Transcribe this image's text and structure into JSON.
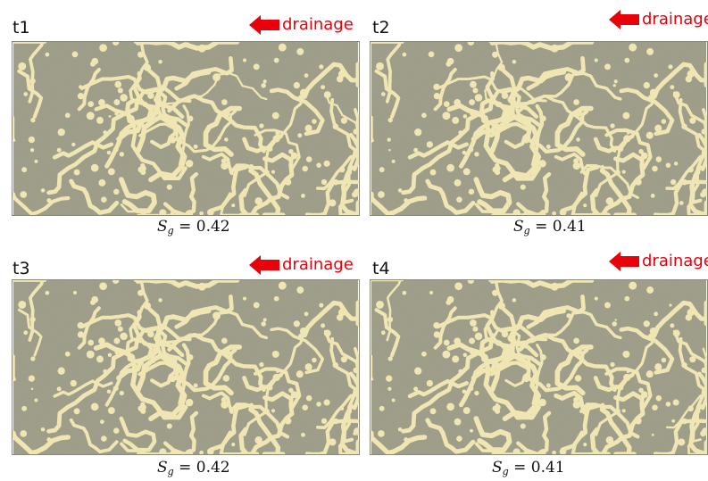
{
  "panels": [
    {
      "label": "t1",
      "flow_label": "drainage",
      "saturation_symbol": "S",
      "saturation_subscript": "g",
      "saturation_equals": "=",
      "saturation_value": "0.42"
    },
    {
      "label": "t2",
      "flow_label": "drainage",
      "saturation_symbol": "S",
      "saturation_subscript": "g",
      "saturation_equals": "=",
      "saturation_value": "0.41"
    },
    {
      "label": "t3",
      "flow_label": "drainage",
      "saturation_symbol": "S",
      "saturation_subscript": "g",
      "saturation_equals": "=",
      "saturation_value": "0.42"
    },
    {
      "label": "t4",
      "flow_label": "drainage",
      "saturation_symbol": "S",
      "saturation_subscript": "g",
      "saturation_equals": "=",
      "saturation_value": "0.41"
    }
  ],
  "colors": {
    "solid_matrix": "#9a9a85",
    "gas_phase": "#efe6b4",
    "arrow": "#e8000b",
    "text": "#111111"
  },
  "icons": {
    "flow_arrow": "left-arrow-icon"
  }
}
